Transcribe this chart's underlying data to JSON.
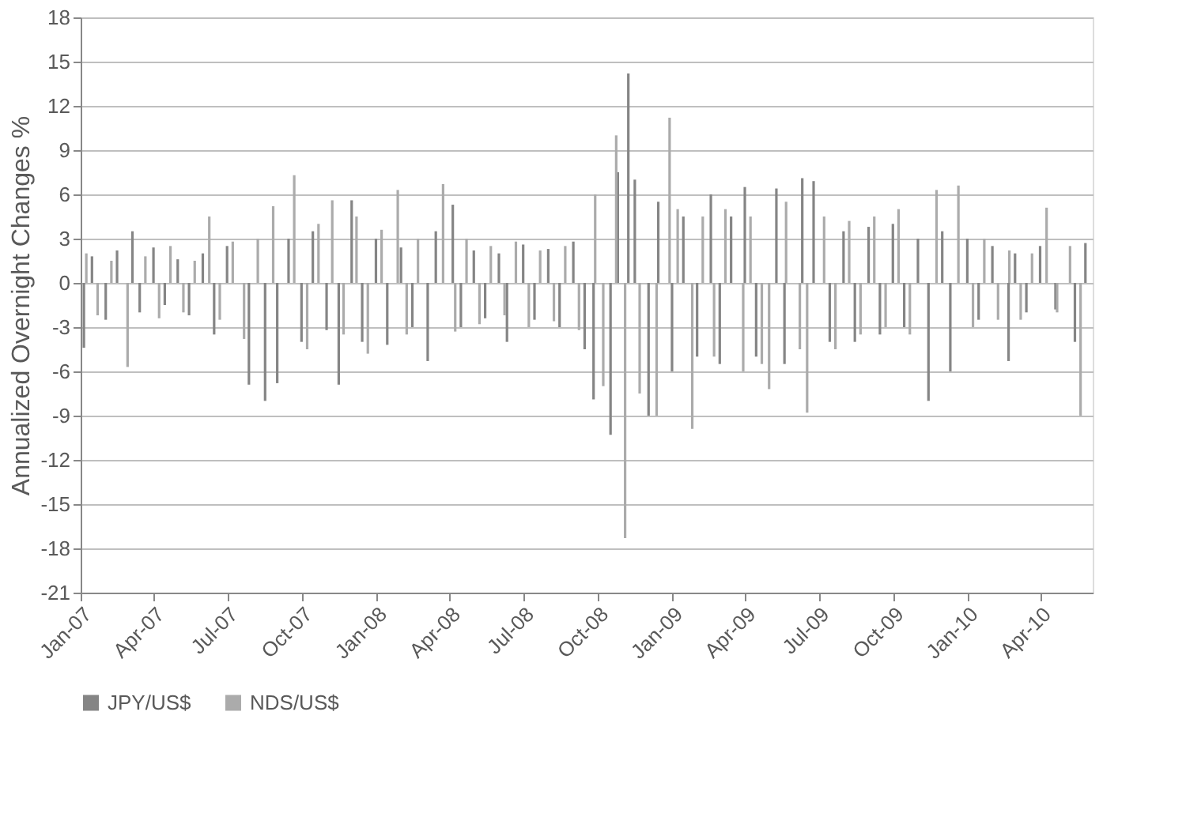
{
  "chart_data": {
    "type": "bar",
    "ylabel": "Annualized Overnight Changes %",
    "grid": "y",
    "legend": "bottom",
    "xlim": [
      "2007-01-01",
      "2010-06-05"
    ],
    "xticks": [
      {
        "value": "2007-01-01",
        "label": "Jan-07"
      },
      {
        "value": "2007-04-01",
        "label": "Apr-07"
      },
      {
        "value": "2007-07-01",
        "label": "Jul-07"
      },
      {
        "value": "2007-10-01",
        "label": "Oct-07"
      },
      {
        "value": "2008-01-01",
        "label": "Jan-08"
      },
      {
        "value": "2008-04-01",
        "label": "Apr-08"
      },
      {
        "value": "2008-07-01",
        "label": "Jul-08"
      },
      {
        "value": "2008-10-01",
        "label": "Oct-08"
      },
      {
        "value": "2009-01-01",
        "label": "Jan-09"
      },
      {
        "value": "2009-04-01",
        "label": "Apr-09"
      },
      {
        "value": "2009-07-01",
        "label": "Jul-09"
      },
      {
        "value": "2009-10-01",
        "label": "Oct-09"
      },
      {
        "value": "2010-01-01",
        "label": "Jan-10"
      },
      {
        "value": "2010-04-01",
        "label": "Apr-10"
      }
    ],
    "ylim": [
      -21,
      18
    ],
    "yticks": [
      -21,
      -18,
      -15,
      -12,
      -9,
      -6,
      -3,
      0,
      3,
      6,
      9,
      12,
      15,
      18
    ],
    "series": [
      {
        "name": "JPY/US$",
        "color": "#858585",
        "x": [
          "2007-01-05",
          "2007-01-15",
          "2007-02-01",
          "2007-02-15",
          "2007-03-06",
          "2007-03-15",
          "2007-04-01",
          "2007-04-15",
          "2007-05-01",
          "2007-05-15",
          "2007-06-01",
          "2007-06-15",
          "2007-07-01",
          "2007-07-28",
          "2007-08-17",
          "2007-09-01",
          "2007-09-15",
          "2007-10-01",
          "2007-10-15",
          "2007-11-01",
          "2007-11-16",
          "2007-12-02",
          "2007-12-15",
          "2008-01-01",
          "2008-01-15",
          "2008-02-01",
          "2008-02-15",
          "2008-03-05",
          "2008-03-15",
          "2008-04-05",
          "2008-04-15",
          "2008-05-01",
          "2008-05-15",
          "2008-06-01",
          "2008-06-11",
          "2008-07-01",
          "2008-07-15",
          "2008-08-01",
          "2008-08-15",
          "2008-09-01",
          "2008-09-15",
          "2008-09-26",
          "2008-10-17",
          "2008-10-26",
          "2008-11-08",
          "2008-11-16",
          "2008-12-03",
          "2008-12-15",
          "2009-01-01",
          "2009-01-15",
          "2009-02-01",
          "2009-02-18",
          "2009-03-01",
          "2009-03-15",
          "2009-04-01",
          "2009-04-15",
          "2009-05-10",
          "2009-05-20",
          "2009-06-11",
          "2009-06-25",
          "2009-07-15",
          "2009-08-01",
          "2009-08-15",
          "2009-09-01",
          "2009-09-15",
          "2009-10-01",
          "2009-10-15",
          "2009-11-01",
          "2009-11-14",
          "2009-12-01",
          "2009-12-11",
          "2010-01-01",
          "2010-01-15",
          "2010-02-01",
          "2010-02-21",
          "2010-03-01",
          "2010-03-15",
          "2010-04-01",
          "2010-04-20",
          "2010-05-14",
          "2010-05-27"
        ],
        "values": [
          -4.4,
          1.8,
          -2.5,
          2.2,
          3.5,
          -2.0,
          2.4,
          -1.5,
          1.6,
          -2.2,
          2.0,
          -3.5,
          2.5,
          -6.9,
          -8.0,
          -6.8,
          3.0,
          -4.0,
          3.5,
          -3.2,
          -6.9,
          5.6,
          -4.0,
          3.0,
          -4.2,
          2.4,
          -3.0,
          -5.3,
          3.5,
          5.3,
          -3.0,
          2.2,
          -2.4,
          2.0,
          -4.0,
          2.6,
          -2.5,
          2.3,
          -3.0,
          2.8,
          -4.5,
          -7.9,
          -10.3,
          7.5,
          14.2,
          7.0,
          -9.0,
          5.5,
          -6.0,
          4.5,
          -5.0,
          6.0,
          -5.5,
          4.5,
          6.5,
          -5.0,
          6.4,
          -5.5,
          7.1,
          6.9,
          -4.0,
          3.5,
          -4.0,
          3.8,
          -3.5,
          4.0,
          -3.0,
          3.0,
          -8.0,
          3.5,
          -6.0,
          3.0,
          -2.5,
          2.5,
          -5.3,
          2.0,
          -2.0,
          2.5,
          -1.8,
          -4.0,
          2.7
        ]
      },
      {
        "name": "NDS/US$",
        "color": "#ababab",
        "x": [
          "2007-01-08",
          "2007-01-22",
          "2007-02-08",
          "2007-02-28",
          "2007-03-22",
          "2007-04-08",
          "2007-04-22",
          "2007-05-08",
          "2007-05-22",
          "2007-06-09",
          "2007-06-22",
          "2007-07-08",
          "2007-07-22",
          "2007-08-08",
          "2007-08-27",
          "2007-09-22",
          "2007-10-08",
          "2007-10-22",
          "2007-11-08",
          "2007-11-22",
          "2007-12-08",
          "2007-12-22",
          "2008-01-08",
          "2008-01-28",
          "2008-02-08",
          "2008-02-22",
          "2008-03-24",
          "2008-04-08",
          "2008-04-22",
          "2008-05-08",
          "2008-05-22",
          "2008-06-08",
          "2008-06-22",
          "2008-07-08",
          "2008-07-22",
          "2008-08-08",
          "2008-08-22",
          "2008-09-08",
          "2008-09-28",
          "2008-10-08",
          "2008-10-24",
          "2008-11-04",
          "2008-11-22",
          "2008-12-13",
          "2008-12-29",
          "2009-01-08",
          "2009-01-26",
          "2009-02-08",
          "2009-02-22",
          "2009-03-08",
          "2009-03-30",
          "2009-04-08",
          "2009-04-22",
          "2009-05-01",
          "2009-05-22",
          "2009-06-08",
          "2009-06-17",
          "2009-07-08",
          "2009-07-22",
          "2009-08-08",
          "2009-08-22",
          "2009-09-08",
          "2009-09-22",
          "2009-10-08",
          "2009-10-22",
          "2009-11-24",
          "2009-12-21",
          "2010-01-08",
          "2010-01-22",
          "2010-02-08",
          "2010-02-22",
          "2010-03-08",
          "2010-03-22",
          "2010-04-09",
          "2010-04-22",
          "2010-05-08",
          "2010-05-21"
        ],
        "values": [
          2.0,
          -2.2,
          1.5,
          -5.7,
          1.8,
          -2.4,
          2.5,
          -2.0,
          1.5,
          4.5,
          -2.5,
          2.8,
          -3.8,
          3.0,
          5.2,
          7.3,
          -4.5,
          4.0,
          5.6,
          -3.5,
          4.5,
          -4.8,
          3.6,
          6.3,
          -3.5,
          3.0,
          6.7,
          -3.3,
          3.0,
          -2.8,
          2.5,
          -2.2,
          2.8,
          -3.0,
          2.2,
          -2.6,
          2.5,
          -3.2,
          6.0,
          -7.0,
          10.0,
          -17.3,
          -7.5,
          -9.0,
          11.2,
          5.0,
          -9.9,
          4.5,
          -5.0,
          5.0,
          -6.0,
          4.5,
          -5.5,
          -7.2,
          5.5,
          -4.5,
          -8.8,
          4.5,
          -4.5,
          4.2,
          -3.5,
          4.5,
          -3.0,
          5.0,
          -3.5,
          6.3,
          6.6,
          -3.0,
          3.0,
          -2.5,
          2.2,
          -2.5,
          2.0,
          5.1,
          -2.0,
          2.5,
          -9.0
        ]
      }
    ]
  }
}
